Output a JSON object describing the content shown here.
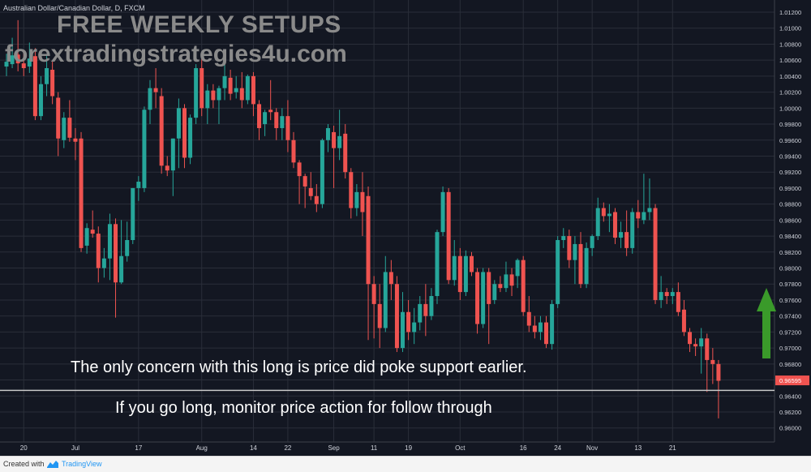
{
  "symbol_label": "Australian Dollar/Canadian Dollar, D, FXCM",
  "overlay": {
    "title": "FREE WEEKLY SETUPS",
    "url": "forextradingstrategies4u.com"
  },
  "notes": {
    "line1": "The only concern with this long is price did poke support earlier.",
    "line2": "If you go long, monitor price action for follow through"
  },
  "footer": {
    "created_with": "Created with",
    "brand": "TradingView"
  },
  "colors": {
    "background": "#131722",
    "grid": "#2a2e39",
    "up": "#26a69a",
    "down": "#ef5350",
    "support_line": "#c8c8c8",
    "arrow": "#3a9a2a",
    "price_tag": "#ef5350"
  },
  "chart_data": {
    "type": "candlestick",
    "title": "Australian Dollar/Canadian Dollar, D, FXCM",
    "ylim": [
      0.959,
      1.0128
    ],
    "y_ticks": [
      0.96,
      0.962,
      0.964,
      0.966,
      0.968,
      0.97,
      0.972,
      0.974,
      0.976,
      0.978,
      0.98,
      0.982,
      0.984,
      0.986,
      0.988,
      0.99,
      0.992,
      0.994,
      0.996,
      0.998,
      1.0,
      1.002,
      1.004,
      1.006,
      1.008,
      1.01,
      1.012
    ],
    "x_ticks": [
      {
        "label": "20",
        "index": 3
      },
      {
        "label": "Jul",
        "index": 12
      },
      {
        "label": "17",
        "index": 23
      },
      {
        "label": "Aug",
        "index": 34
      },
      {
        "label": "14",
        "index": 43
      },
      {
        "label": "22",
        "index": 49
      },
      {
        "label": "Sep",
        "index": 57
      },
      {
        "label": "11",
        "index": 64
      },
      {
        "label": "19",
        "index": 70
      },
      {
        "label": "Oct",
        "index": 79
      },
      {
        "label": "16",
        "index": 90
      },
      {
        "label": "24",
        "index": 96
      },
      {
        "label": "Nov",
        "index": 102
      },
      {
        "label": "13",
        "index": 110
      },
      {
        "label": "21",
        "index": 116
      }
    ],
    "last_price": "0.96595",
    "support_level": 0.9647,
    "grid": true,
    "candles": [
      [
        1.0052,
        1.0058,
        1.004,
        1.0068
      ],
      [
        1.0055,
        1.0066,
        1.005,
        1.0088
      ],
      [
        1.0067,
        1.0056,
        1.0046,
        1.011
      ],
      [
        1.0056,
        1.005,
        1.004,
        1.0072
      ],
      [
        1.0052,
        1.0062,
        1.0044,
        1.0082
      ],
      [
        1.0065,
        0.999,
        0.9985,
        1.0075
      ],
      [
        0.999,
        1.003,
        0.9985,
        1.004
      ],
      [
        1.003,
        1.005,
        1.0015,
        1.0065
      ],
      [
        1.0048,
        1.0015,
        1.0005,
        1.0058
      ],
      [
        1.0013,
        0.9962,
        0.994,
        1.002
      ],
      [
        0.996,
        0.9988,
        0.995,
        0.9995
      ],
      [
        0.9988,
        0.9963,
        0.9958,
        1.001
      ],
      [
        0.9962,
        0.9958,
        0.9935,
        0.9975
      ],
      [
        0.9962,
        0.9825,
        0.982,
        0.997
      ],
      [
        0.9828,
        0.985,
        0.9818,
        0.9856
      ],
      [
        0.9848,
        0.9843,
        0.9838,
        0.9872
      ],
      [
        0.9843,
        0.98,
        0.9782,
        0.9852
      ],
      [
        0.98,
        0.9812,
        0.9788,
        0.9825
      ],
      [
        0.9812,
        0.9855,
        0.9785,
        0.9868
      ],
      [
        0.9855,
        0.9782,
        0.9738,
        0.9862
      ],
      [
        0.9782,
        0.9815,
        0.978,
        0.986
      ],
      [
        0.9815,
        0.9835,
        0.9808,
        0.9858
      ],
      [
        0.9835,
        0.99,
        0.983,
        0.99
      ],
      [
        0.99,
        0.9908,
        0.9884,
        0.9915
      ],
      [
        0.99,
        0.9998,
        0.9895,
        1.0002
      ],
      [
        0.9998,
        1.0025,
        0.998,
        1.0035
      ],
      [
        1.0025,
        1.002,
        1.0,
        1.005
      ],
      [
        1.0015,
        0.9928,
        0.9918,
        1.0025
      ],
      [
        0.9928,
        0.9922,
        0.9915,
        0.994
      ],
      [
        0.9922,
        0.9962,
        0.989,
        0.9962
      ],
      [
        0.9962,
        1.0,
        0.9925,
        1.0012
      ],
      [
        1.0,
        0.9938,
        0.9925,
        1.0005
      ],
      [
        0.9938,
        0.9988,
        0.993,
        0.9992
      ],
      [
        0.9988,
        1.005,
        0.998,
        1.0055
      ],
      [
        1.005,
        1.0,
        0.999,
        1.0065
      ],
      [
        1.0,
        1.0022,
        0.998,
        1.003
      ],
      [
        1.0022,
        1.001,
        1.0,
        1.003
      ],
      [
        1.001,
        1.0025,
        0.998,
        1.0028
      ],
      [
        1.0025,
        1.004,
        1.001,
        1.0058
      ],
      [
        1.0038,
        1.0018,
        1.001,
        1.0048
      ],
      [
        1.002,
        1.0025,
        1.0012,
        1.004
      ],
      [
        1.0025,
        1.001,
        1.0,
        1.0045
      ],
      [
        1.001,
        1.004,
        1.0005,
        1.0042
      ],
      [
        1.004,
        1.0005,
        0.999,
        1.0045
      ],
      [
        1.0005,
        0.9975,
        0.996,
        1.001
      ],
      [
        0.998,
        0.9995,
        0.9965,
        0.9998
      ],
      [
        0.9998,
        0.9995,
        0.9985,
        1.0035
      ],
      [
        0.9995,
        0.9975,
        0.996,
        1.0
      ],
      [
        0.9975,
        0.999,
        0.996,
        1.0
      ],
      [
        0.999,
        0.996,
        0.9945,
        1.001
      ],
      [
        0.996,
        0.9932,
        0.9925,
        0.997
      ],
      [
        0.9932,
        0.9915,
        0.988,
        0.9935
      ],
      [
        0.9915,
        0.9902,
        0.9875,
        0.9918
      ],
      [
        0.99,
        0.989,
        0.9885,
        0.992
      ],
      [
        0.989,
        0.988,
        0.987,
        0.9905
      ],
      [
        0.988,
        0.996,
        0.9875,
        0.9962
      ],
      [
        0.996,
        0.9975,
        0.9945,
        0.998
      ],
      [
        0.997,
        0.995,
        0.99,
        0.9978
      ],
      [
        0.995,
        0.9965,
        0.9935,
        0.9998
      ],
      [
        0.9968,
        0.992,
        0.9912,
        0.998
      ],
      [
        0.992,
        0.9875,
        0.9862,
        0.9925
      ],
      [
        0.9875,
        0.9895,
        0.9865,
        0.9905
      ],
      [
        0.9895,
        0.987,
        0.984,
        0.992
      ],
      [
        0.989,
        0.978,
        0.971,
        0.9902
      ],
      [
        0.978,
        0.9755,
        0.9712,
        0.979
      ],
      [
        0.9755,
        0.9725,
        0.97,
        0.978
      ],
      [
        0.9725,
        0.9795,
        0.972,
        0.9815
      ],
      [
        0.9795,
        0.978,
        0.976,
        0.981
      ],
      [
        0.978,
        0.97,
        0.9695,
        0.979
      ],
      [
        0.97,
        0.9745,
        0.9695,
        0.977
      ],
      [
        0.9745,
        0.972,
        0.971,
        0.976
      ],
      [
        0.972,
        0.9732,
        0.9705,
        0.975
      ],
      [
        0.9732,
        0.9755,
        0.9722,
        0.9765
      ],
      [
        0.9755,
        0.974,
        0.9715,
        0.978
      ],
      [
        0.974,
        0.9765,
        0.9735,
        0.9775
      ],
      [
        0.9765,
        0.9845,
        0.9755,
        0.9848
      ],
      [
        0.9845,
        0.9895,
        0.984,
        0.9902
      ],
      [
        0.9895,
        0.9785,
        0.978,
        0.99
      ],
      [
        0.9785,
        0.9815,
        0.9778,
        0.9835
      ],
      [
        0.9815,
        0.977,
        0.976,
        0.9825
      ],
      [
        0.977,
        0.9815,
        0.9765,
        0.9822
      ],
      [
        0.9815,
        0.9795,
        0.979,
        0.982
      ],
      [
        0.9795,
        0.973,
        0.9718,
        0.98
      ],
      [
        0.973,
        0.9795,
        0.9725,
        0.98
      ],
      [
        0.9795,
        0.9755,
        0.9705,
        0.98
      ],
      [
        0.976,
        0.978,
        0.9755,
        0.9785
      ],
      [
        0.978,
        0.9775,
        0.977,
        0.979
      ],
      [
        0.9775,
        0.9792,
        0.977,
        0.9808
      ],
      [
        0.9792,
        0.9778,
        0.9765,
        0.98
      ],
      [
        0.979,
        0.981,
        0.9775,
        0.9812
      ],
      [
        0.981,
        0.9745,
        0.974,
        0.9815
      ],
      [
        0.9745,
        0.9728,
        0.972,
        0.9765
      ],
      [
        0.9728,
        0.972,
        0.9712,
        0.974
      ],
      [
        0.972,
        0.9732,
        0.971,
        0.974
      ],
      [
        0.9732,
        0.9705,
        0.97,
        0.974
      ],
      [
        0.9705,
        0.9755,
        0.9698,
        0.976
      ],
      [
        0.9755,
        0.9835,
        0.975,
        0.984
      ],
      [
        0.9835,
        0.984,
        0.9825,
        0.985
      ],
      [
        0.984,
        0.981,
        0.98,
        0.9848
      ],
      [
        0.981,
        0.983,
        0.978,
        0.984
      ],
      [
        0.983,
        0.978,
        0.9775,
        0.9845
      ],
      [
        0.978,
        0.9825,
        0.9775,
        0.9832
      ],
      [
        0.9825,
        0.984,
        0.9815,
        0.9842
      ],
      [
        0.984,
        0.9875,
        0.9835,
        0.9888
      ],
      [
        0.9875,
        0.9865,
        0.9858,
        0.9882
      ],
      [
        0.9865,
        0.9868,
        0.9845,
        0.988
      ],
      [
        0.987,
        0.9838,
        0.983,
        0.9875
      ],
      [
        0.9838,
        0.9845,
        0.9825,
        0.9858
      ],
      [
        0.9845,
        0.9825,
        0.9815,
        0.9872
      ],
      [
        0.9825,
        0.987,
        0.9818,
        0.9875
      ],
      [
        0.987,
        0.9862,
        0.985,
        0.9885
      ],
      [
        0.986,
        0.987,
        0.9855,
        0.9918
      ],
      [
        0.987,
        0.9875,
        0.986,
        0.9912
      ],
      [
        0.9875,
        0.976,
        0.9755,
        0.988
      ],
      [
        0.976,
        0.977,
        0.975,
        0.979
      ],
      [
        0.977,
        0.9765,
        0.9755,
        0.9775
      ],
      [
        0.9765,
        0.977,
        0.9755,
        0.9775
      ],
      [
        0.977,
        0.9745,
        0.974,
        0.9782
      ],
      [
        0.9748,
        0.972,
        0.9715,
        0.976
      ],
      [
        0.972,
        0.9705,
        0.9695,
        0.9725
      ],
      [
        0.9705,
        0.9702,
        0.969,
        0.9712
      ],
      [
        0.9702,
        0.9712,
        0.9668,
        0.9725
      ],
      [
        0.9712,
        0.9685,
        0.9645,
        0.9718
      ],
      [
        0.9685,
        0.968,
        0.9655,
        0.97
      ],
      [
        0.968,
        0.9659,
        0.9612,
        0.9685
      ]
    ]
  }
}
